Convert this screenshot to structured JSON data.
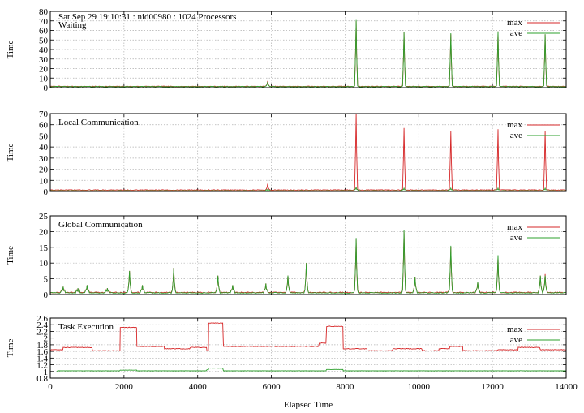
{
  "chart_data": [
    {
      "type": "line",
      "label": "Waiting",
      "header": "Sat Sep 29 19:10:31 : nid00980 : 1024 Processors",
      "ylabel": "Time",
      "xlabel": "",
      "xlim": [
        0,
        14000
      ],
      "ylim": [
        0,
        80
      ],
      "yticks": [
        0,
        10,
        20,
        30,
        40,
        50,
        60,
        70,
        80
      ],
      "ytick_labels": [
        "0",
        "10",
        "20",
        "30",
        "40",
        "50",
        "60",
        "70",
        "80"
      ],
      "grid": true,
      "legend_position": "top-right",
      "series": [
        {
          "name": "max",
          "color": "#d62728",
          "baseline": 1,
          "spikes": [
            [
              5900,
              7
            ],
            [
              8300,
              70
            ],
            [
              9600,
              58
            ],
            [
              10870,
              56
            ],
            [
              12150,
              59
            ],
            [
              13430,
              56
            ]
          ]
        },
        {
          "name": "ave",
          "color": "#2ca02c",
          "baseline": 0.8,
          "spikes": [
            [
              5900,
              6
            ],
            [
              8300,
              71
            ],
            [
              9600,
              58
            ],
            [
              10870,
              57
            ],
            [
              12150,
              59
            ],
            [
              13430,
              56
            ]
          ]
        }
      ]
    },
    {
      "type": "line",
      "label": "Local Communication",
      "ylabel": "Time",
      "xlabel": "",
      "xlim": [
        0,
        14000
      ],
      "ylim": [
        0,
        70
      ],
      "yticks": [
        0,
        10,
        20,
        30,
        40,
        50,
        60,
        70
      ],
      "ytick_labels": [
        "0",
        "10",
        "20",
        "30",
        "40",
        "50",
        "60",
        "70"
      ],
      "grid": true,
      "legend_position": "top-right",
      "series": [
        {
          "name": "max",
          "color": "#d62728",
          "baseline": 1,
          "spikes": [
            [
              5900,
              7
            ],
            [
              8300,
              70
            ],
            [
              9600,
              57
            ],
            [
              10870,
              54
            ],
            [
              12150,
              56
            ],
            [
              13430,
              54
            ]
          ]
        },
        {
          "name": "ave",
          "color": "#2ca02c",
          "baseline": 0.5,
          "spikes": [
            [
              5900,
              2
            ],
            [
              8300,
              4
            ],
            [
              9600,
              3
            ],
            [
              10870,
              3
            ],
            [
              12150,
              3
            ],
            [
              13430,
              3
            ]
          ]
        }
      ]
    },
    {
      "type": "line",
      "label": "Global Communication",
      "ylabel": "Time",
      "xlabel": "",
      "xlim": [
        0,
        14000
      ],
      "ylim": [
        0,
        25
      ],
      "yticks": [
        0,
        5,
        10,
        15,
        20,
        25
      ],
      "ytick_labels": [
        "0",
        "5",
        "10",
        "15",
        "20",
        "25"
      ],
      "grid": true,
      "legend_position": "top-right",
      "series": [
        {
          "name": "max",
          "color": "#d62728",
          "baseline": 0.5,
          "spikes": [
            [
              350,
              2.5
            ],
            [
              750,
              2
            ],
            [
              1000,
              3
            ],
            [
              1550,
              2
            ],
            [
              2150,
              7.5
            ],
            [
              2500,
              3
            ],
            [
              3350,
              8.5
            ],
            [
              4550,
              6
            ],
            [
              4950,
              3
            ],
            [
              5850,
              3.5
            ],
            [
              6450,
              6
            ],
            [
              6950,
              10
            ],
            [
              8300,
              17.5
            ],
            [
              9600,
              20
            ],
            [
              9900,
              5.5
            ],
            [
              10870,
              15
            ],
            [
              11600,
              4
            ],
            [
              12150,
              12
            ],
            [
              13300,
              6
            ],
            [
              13430,
              6.5
            ]
          ]
        },
        {
          "name": "ave",
          "color": "#2ca02c",
          "baseline": 0.4,
          "spikes": [
            [
              350,
              2.5
            ],
            [
              750,
              2
            ],
            [
              1000,
              3
            ],
            [
              1550,
              2
            ],
            [
              2150,
              7.5
            ],
            [
              2500,
              3
            ],
            [
              3350,
              8.5
            ],
            [
              4550,
              6
            ],
            [
              4950,
              3
            ],
            [
              5850,
              3.5
            ],
            [
              6450,
              6
            ],
            [
              6950,
              10
            ],
            [
              8300,
              18
            ],
            [
              9600,
              20.5
            ],
            [
              9900,
              5.5
            ],
            [
              10870,
              15.5
            ],
            [
              11600,
              4
            ],
            [
              12150,
              12.5
            ],
            [
              13300,
              6
            ],
            [
              13430,
              6
            ]
          ]
        }
      ]
    },
    {
      "type": "line",
      "label": "Task Execution",
      "ylabel": "Time",
      "xlabel": "Elapsed Time",
      "xlim": [
        0,
        14000
      ],
      "ylim": [
        0.8,
        2.6
      ],
      "yticks": [
        0.8,
        1,
        1.2,
        1.4,
        1.6,
        1.8,
        2,
        2.2,
        2.4,
        2.6
      ],
      "ytick_labels": [
        "0.8",
        "1",
        "1.2",
        "1.4",
        "1.6",
        "1.8",
        "2",
        "2.2",
        "2.4",
        "2.6"
      ],
      "xticks": [
        0,
        2000,
        4000,
        6000,
        8000,
        10000,
        12000,
        14000
      ],
      "xtick_labels": [
        "0",
        "2000",
        "4000",
        "6000",
        "8000",
        "10000",
        "12000",
        "14000"
      ],
      "grid": true,
      "legend_position": "top-right",
      "series": [
        {
          "name": "max",
          "color": "#d62728",
          "steps": [
            [
              0,
              1.65
            ],
            [
              350,
              1.72
            ],
            [
              1150,
              1.62
            ],
            [
              1900,
              2.32
            ],
            [
              2350,
              1.75
            ],
            [
              3100,
              1.75
            ],
            [
              3100,
              1.68
            ],
            [
              3800,
              1.78
            ],
            [
              3800,
              1.72
            ],
            [
              4250,
              1.68
            ],
            [
              4250,
              1.62
            ],
            [
              4300,
              2.45
            ],
            [
              4700,
              1.75
            ],
            [
              7300,
              1.85
            ],
            [
              7500,
              2.35
            ],
            [
              7950,
              1.68
            ],
            [
              8600,
              1.62
            ],
            [
              9300,
              1.68
            ],
            [
              10100,
              1.62
            ],
            [
              10550,
              1.68
            ],
            [
              10850,
              1.75
            ],
            [
              11200,
              1.62
            ],
            [
              12150,
              1.65
            ],
            [
              12700,
              1.72
            ],
            [
              13300,
              1.65
            ],
            [
              14000,
              1.65
            ]
          ]
        },
        {
          "name": "ave",
          "color": "#2ca02c",
          "steps": [
            [
              0,
              0.98
            ],
            [
              200,
              1.02
            ],
            [
              1900,
              1.04
            ],
            [
              2350,
              1.02
            ],
            [
              4250,
              1.05
            ],
            [
              4300,
              1.1
            ],
            [
              4700,
              1.02
            ],
            [
              7500,
              1.06
            ],
            [
              7950,
              1.02
            ],
            [
              14000,
              1.02
            ]
          ]
        }
      ]
    }
  ]
}
